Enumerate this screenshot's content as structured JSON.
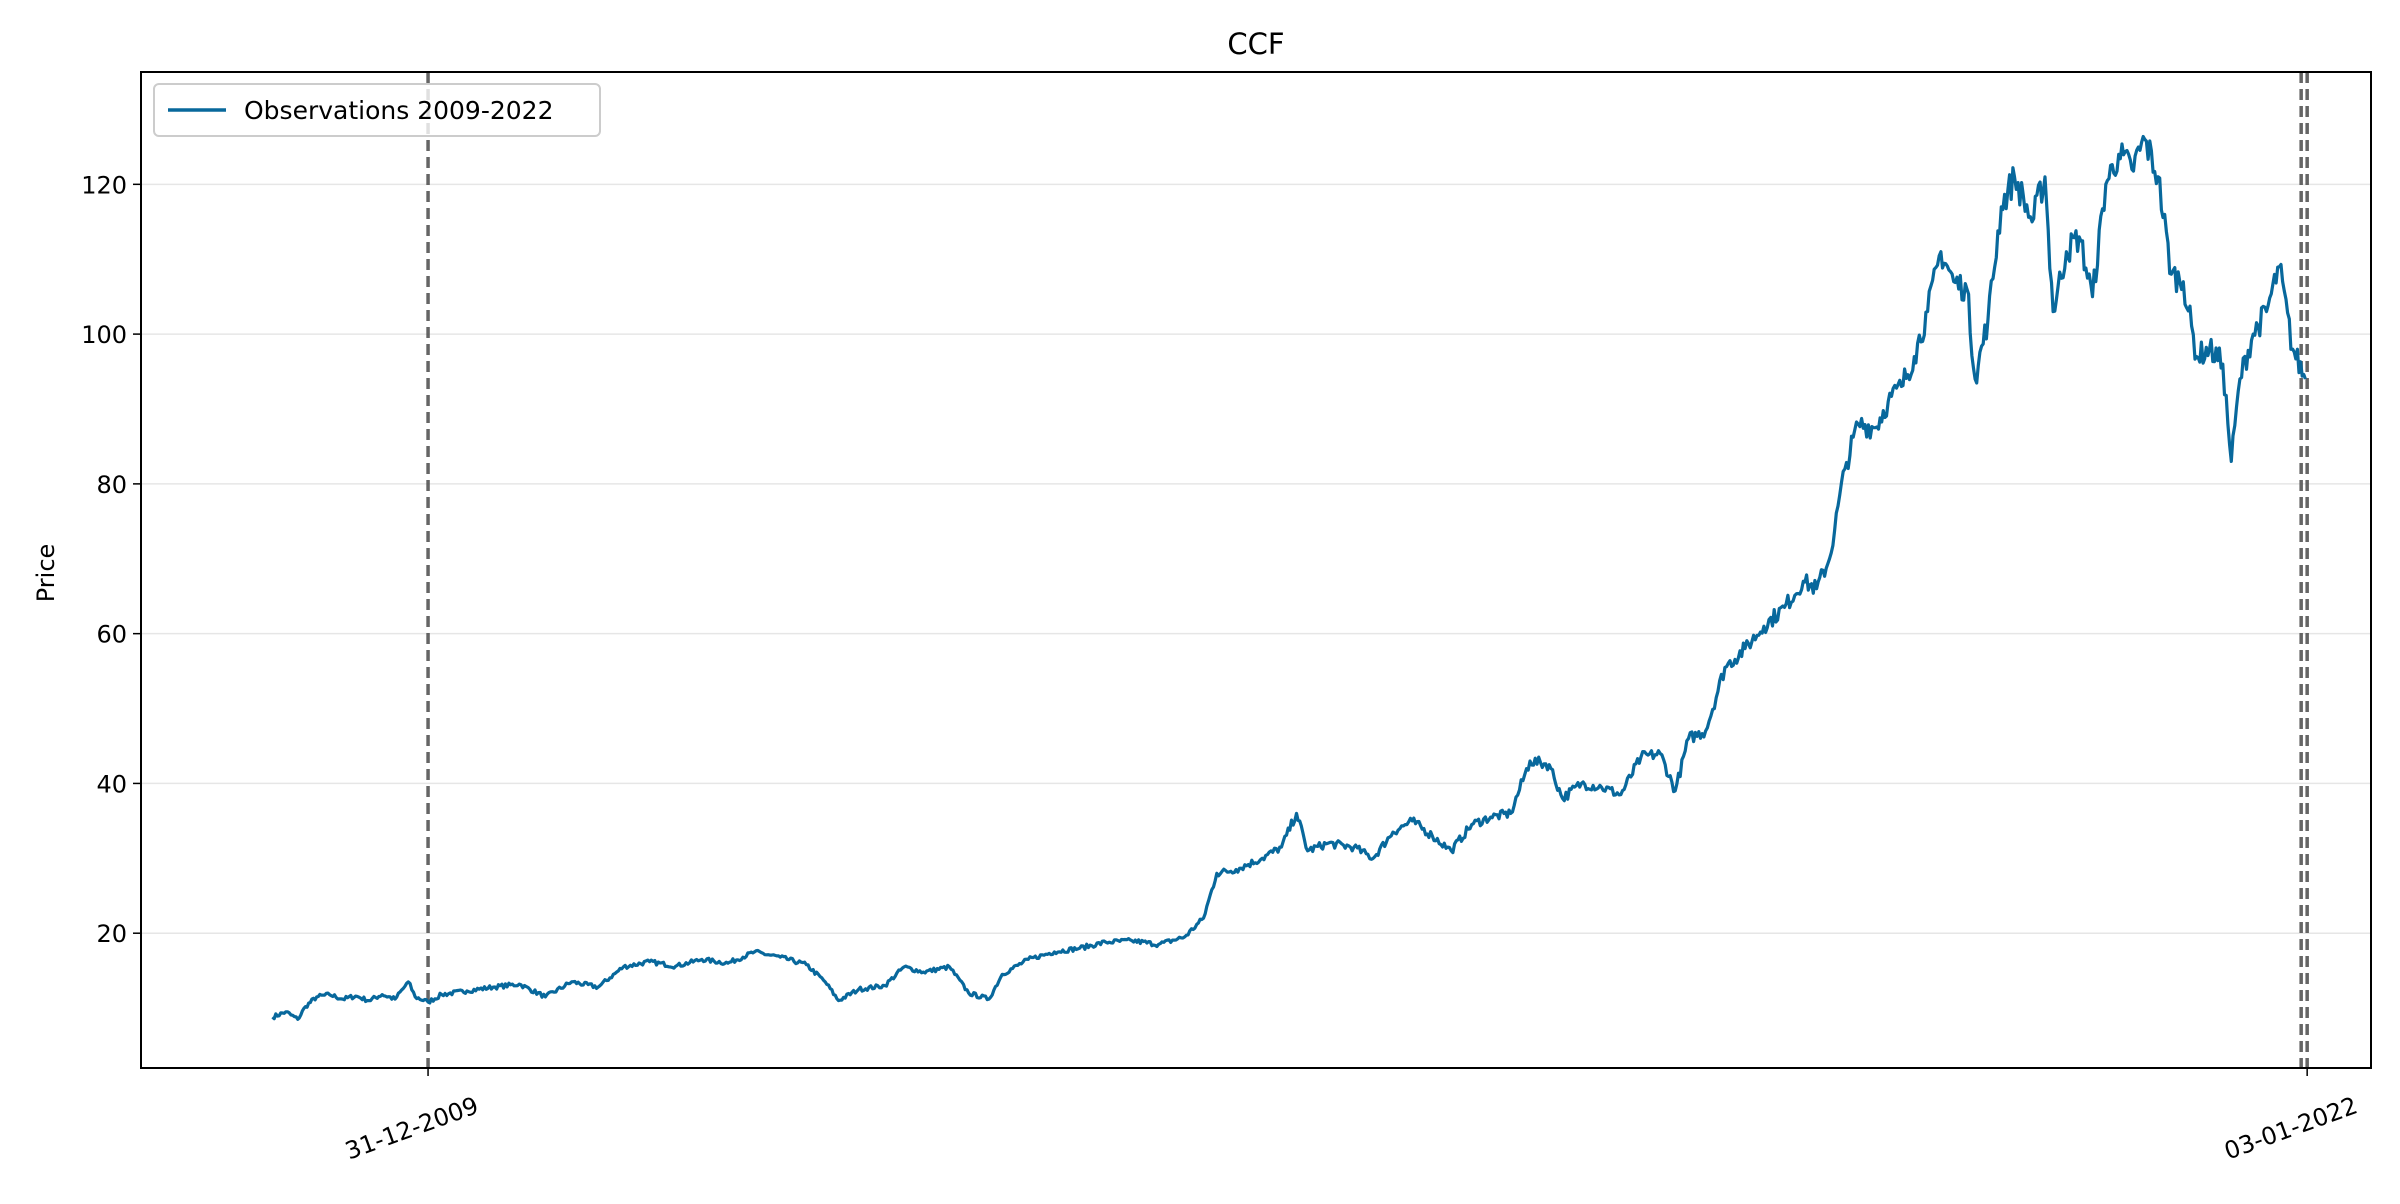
{
  "chart_data": {
    "type": "line",
    "title": "CCF",
    "xlabel": "",
    "ylabel": "Price",
    "ylim": [
      2,
      135
    ],
    "xlim": [
      "2008-03-01",
      "2022-06-01"
    ],
    "grid": "y",
    "legend_position": "top-left",
    "x_ticks": [
      {
        "date": "2009-12-31",
        "label": "31-12-2009"
      },
      {
        "date": "2022-01-03",
        "label": "03-01-2022"
      }
    ],
    "y_ticks": [
      20,
      40,
      60,
      80,
      100,
      120
    ],
    "vlines": [
      "2009-12-31",
      "2021-12-20",
      "2022-01-03"
    ],
    "series": [
      {
        "name": "Observations 2009-2022",
        "color": "#08689c",
        "points": [
          [
            "2009-01-02",
            8.8
          ],
          [
            "2009-02-02",
            9.5
          ],
          [
            "2009-03-02",
            8.5
          ],
          [
            "2009-03-20",
            10.2
          ],
          [
            "2009-04-15",
            11.5
          ],
          [
            "2009-05-15",
            11.8
          ],
          [
            "2009-06-15",
            11.2
          ],
          [
            "2009-07-15",
            11.6
          ],
          [
            "2009-08-15",
            11.0
          ],
          [
            "2009-09-15",
            11.8
          ],
          [
            "2009-10-15",
            11.2
          ],
          [
            "2009-11-15",
            13.5
          ],
          [
            "2009-12-01",
            11.5
          ],
          [
            "2009-12-31",
            10.8
          ],
          [
            "2010-02-01",
            11.8
          ],
          [
            "2010-04-01",
            12.3
          ],
          [
            "2010-06-01",
            12.8
          ],
          [
            "2010-08-01",
            13.2
          ],
          [
            "2010-10-01",
            11.5
          ],
          [
            "2010-12-01",
            13.5
          ],
          [
            "2011-02-01",
            12.8
          ],
          [
            "2011-04-01",
            15.5
          ],
          [
            "2011-06-01",
            16.2
          ],
          [
            "2011-08-01",
            15.6
          ],
          [
            "2011-10-01",
            16.5
          ],
          [
            "2011-12-01",
            16.0
          ],
          [
            "2012-02-01",
            17.5
          ],
          [
            "2012-04-01",
            16.8
          ],
          [
            "2012-06-01",
            15.8
          ],
          [
            "2012-07-15",
            13.5
          ],
          [
            "2012-08-15",
            11.0
          ],
          [
            "2012-10-01",
            12.5
          ],
          [
            "2012-12-01",
            13.0
          ],
          [
            "2013-01-15",
            15.5
          ],
          [
            "2013-03-01",
            14.8
          ],
          [
            "2013-05-01",
            15.5
          ],
          [
            "2013-06-15",
            12.0
          ],
          [
            "2013-08-01",
            11.2
          ],
          [
            "2013-09-01",
            14.5
          ],
          [
            "2013-11-01",
            16.5
          ],
          [
            "2014-01-01",
            17.5
          ],
          [
            "2014-03-01",
            18.0
          ],
          [
            "2014-05-01",
            18.8
          ],
          [
            "2014-07-01",
            19.0
          ],
          [
            "2014-09-01",
            18.5
          ],
          [
            "2014-11-01",
            19.5
          ],
          [
            "2014-12-15",
            22.0
          ],
          [
            "2015-01-15",
            28.0
          ],
          [
            "2015-03-01",
            28.5
          ],
          [
            "2015-05-01",
            30.0
          ],
          [
            "2015-06-15",
            31.5
          ],
          [
            "2015-07-20",
            36.0
          ],
          [
            "2015-08-15",
            31.0
          ],
          [
            "2015-10-01",
            32.0
          ],
          [
            "2015-12-01",
            31.5
          ],
          [
            "2016-01-15",
            30.0
          ],
          [
            "2016-03-01",
            33.5
          ],
          [
            "2016-04-15",
            35.0
          ],
          [
            "2016-06-01",
            33.0
          ],
          [
            "2016-07-15",
            31.0
          ],
          [
            "2016-09-01",
            34.5
          ],
          [
            "2016-10-15",
            35.5
          ],
          [
            "2016-12-01",
            36.0
          ],
          [
            "2017-01-15",
            43.0
          ],
          [
            "2017-03-01",
            42.5
          ],
          [
            "2017-04-01",
            38.0
          ],
          [
            "2017-05-15",
            40.0
          ],
          [
            "2017-07-01",
            39.5
          ],
          [
            "2017-08-15",
            38.5
          ],
          [
            "2017-10-01",
            43.5
          ],
          [
            "2017-11-15",
            44.0
          ],
          [
            "2017-12-20",
            39.0
          ],
          [
            "2018-01-20",
            46.0
          ],
          [
            "2018-03-01",
            47.0
          ],
          [
            "2018-04-15",
            55.5
          ],
          [
            "2018-06-01",
            58.0
          ],
          [
            "2018-07-15",
            61.0
          ],
          [
            "2018-09-01",
            63.5
          ],
          [
            "2018-10-15",
            67.0
          ],
          [
            "2018-11-15",
            66.0
          ],
          [
            "2018-12-15",
            70.0
          ],
          [
            "2019-01-20",
            82.0
          ],
          [
            "2019-02-20",
            88.0
          ],
          [
            "2019-04-01",
            87.5
          ],
          [
            "2019-05-01",
            91.0
          ],
          [
            "2019-06-01",
            93.0
          ],
          [
            "2019-07-01",
            97.0
          ],
          [
            "2019-08-01",
            103.0
          ],
          [
            "2019-09-01",
            111.0
          ],
          [
            "2019-10-01",
            107.0
          ],
          [
            "2019-11-01",
            106.0
          ],
          [
            "2019-11-20",
            94.0
          ],
          [
            "2019-12-20",
            102.0
          ],
          [
            "2020-01-20",
            117.0
          ],
          [
            "2020-02-20",
            121.0
          ],
          [
            "2020-04-01",
            115.0
          ],
          [
            "2020-05-01",
            121.0
          ],
          [
            "2020-05-20",
            103.0
          ],
          [
            "2020-06-20",
            111.0
          ],
          [
            "2020-07-20",
            113.0
          ],
          [
            "2020-08-20",
            105.0
          ],
          [
            "2020-09-20",
            120.0
          ],
          [
            "2020-10-20",
            124.0
          ],
          [
            "2020-11-20",
            122.0
          ],
          [
            "2020-12-20",
            126.0
          ],
          [
            "2021-01-20",
            121.0
          ],
          [
            "2021-02-20",
            108.0
          ],
          [
            "2021-03-20",
            107.0
          ],
          [
            "2021-04-20",
            97.0
          ],
          [
            "2021-05-20",
            98.0
          ],
          [
            "2021-06-20",
            96.0
          ],
          [
            "2021-07-10",
            83.0
          ],
          [
            "2021-07-30",
            94.0
          ],
          [
            "2021-08-30",
            100.0
          ],
          [
            "2021-09-30",
            103.0
          ],
          [
            "2021-10-30",
            109.0
          ],
          [
            "2021-11-30",
            98.0
          ],
          [
            "2021-12-30",
            94.0
          ]
        ]
      }
    ]
  }
}
